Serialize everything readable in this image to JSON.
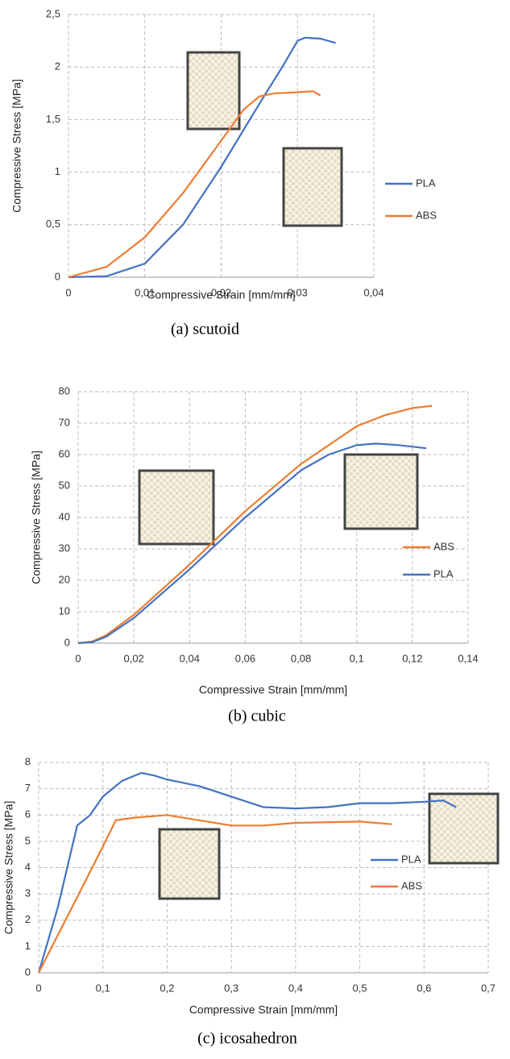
{
  "chart_data": [
    {
      "type": "line",
      "caption": "(a) scutoid",
      "x_label": "Compressive Strain [mm/mm]",
      "y_label": "Compressive Stress [MPa]",
      "xlim": [
        0,
        0.04
      ],
      "ylim": [
        0,
        2.5
      ],
      "xticks": [
        0,
        {
          "value": 0.01,
          "label": "0,01"
        },
        {
          "value": 0.02,
          "label": "0,02"
        },
        {
          "value": 0.03,
          "label": "0,03"
        },
        {
          "value": 0.04,
          "label": "0,04"
        }
      ],
      "yticks": [
        0,
        {
          "value": 0.5,
          "label": "0,5"
        },
        1,
        {
          "value": 1.5,
          "label": "1,5"
        },
        2,
        {
          "value": 2.5,
          "label": "2,5"
        }
      ],
      "grid": true,
      "series": [
        {
          "name": "PLA",
          "color": "#4472c4",
          "x": [
            0,
            0.005,
            0.01,
            0.015,
            0.02,
            0.025,
            0.028,
            0.03,
            0.031,
            0.033,
            0.035
          ],
          "values": [
            0,
            0.01,
            0.13,
            0.5,
            1.05,
            1.65,
            2.0,
            2.25,
            2.28,
            2.27,
            2.23
          ]
        },
        {
          "name": "ABS",
          "color": "#ed7d31",
          "x": [
            0,
            0.005,
            0.01,
            0.015,
            0.02,
            0.023,
            0.025,
            0.027,
            0.03,
            0.032,
            0.033
          ],
          "values": [
            0,
            0.1,
            0.38,
            0.8,
            1.3,
            1.6,
            1.72,
            1.75,
            1.76,
            1.77,
            1.73
          ]
        }
      ]
    },
    {
      "type": "line",
      "caption": "(b) cubic",
      "x_label": "Compressive Strain [mm/mm]",
      "y_label": "Compressive Stress [MPa]",
      "xlim": [
        0,
        0.14
      ],
      "ylim": [
        0,
        80
      ],
      "xticks": [
        0,
        {
          "value": 0.02,
          "label": "0,02"
        },
        {
          "value": 0.04,
          "label": "0,04"
        },
        {
          "value": 0.06,
          "label": "0,06"
        },
        {
          "value": 0.08,
          "label": "0,08"
        },
        {
          "value": 0.1,
          "label": "0,1"
        },
        {
          "value": 0.12,
          "label": "0,12"
        },
        {
          "value": 0.14,
          "label": "0,14"
        }
      ],
      "yticks": [
        0,
        10,
        20,
        30,
        40,
        50,
        60,
        70,
        80
      ],
      "grid": true,
      "series": [
        {
          "name": "ABS",
          "color": "#ed7d31",
          "x": [
            0,
            0.005,
            0.01,
            0.02,
            0.04,
            0.06,
            0.08,
            0.1,
            0.11,
            0.12,
            0.127
          ],
          "values": [
            0,
            0.5,
            2.5,
            9,
            25,
            42,
            57,
            69,
            72.5,
            74.8,
            75.5
          ]
        },
        {
          "name": "PLA",
          "color": "#4472c4",
          "x": [
            0,
            0.005,
            0.01,
            0.02,
            0.04,
            0.06,
            0.08,
            0.09,
            0.1,
            0.107,
            0.115,
            0.125
          ],
          "values": [
            0,
            0.3,
            2,
            8,
            23.5,
            40,
            55,
            60,
            63,
            63.5,
            63,
            62
          ]
        }
      ]
    },
    {
      "type": "line",
      "caption": "(c) icosahedron",
      "x_label": "Compressive Strain [mm/mm]",
      "y_label": "Compressive Stress [MPa]",
      "xlim": [
        0,
        0.7
      ],
      "ylim": [
        0,
        8
      ],
      "xticks": [
        0,
        {
          "value": 0.1,
          "label": "0,1"
        },
        {
          "value": 0.2,
          "label": "0,2"
        },
        {
          "value": 0.3,
          "label": "0,3"
        },
        {
          "value": 0.4,
          "label": "0,4"
        },
        {
          "value": 0.5,
          "label": "0,5"
        },
        {
          "value": 0.6,
          "label": "0,6"
        },
        {
          "value": 0.7,
          "label": "0,7"
        }
      ],
      "yticks": [
        0,
        1,
        2,
        3,
        4,
        5,
        6,
        7,
        8
      ],
      "grid": true,
      "series": [
        {
          "name": "PLA",
          "color": "#4472c4",
          "x": [
            0,
            0.03,
            0.06,
            0.08,
            0.1,
            0.13,
            0.16,
            0.18,
            0.2,
            0.25,
            0.3,
            0.35,
            0.4,
            0.45,
            0.5,
            0.55,
            0.6,
            0.63,
            0.65
          ],
          "values": [
            0,
            2.5,
            5.6,
            6.0,
            6.7,
            7.3,
            7.6,
            7.5,
            7.35,
            7.1,
            6.7,
            6.3,
            6.25,
            6.3,
            6.45,
            6.45,
            6.5,
            6.55,
            6.3
          ]
        },
        {
          "name": "ABS",
          "color": "#ed7d31",
          "x": [
            0,
            0.05,
            0.1,
            0.12,
            0.15,
            0.2,
            0.25,
            0.3,
            0.35,
            0.4,
            0.5,
            0.55
          ],
          "values": [
            0,
            2.4,
            4.8,
            5.8,
            5.9,
            6.0,
            5.8,
            5.6,
            5.6,
            5.7,
            5.75,
            5.65
          ]
        }
      ]
    }
  ]
}
